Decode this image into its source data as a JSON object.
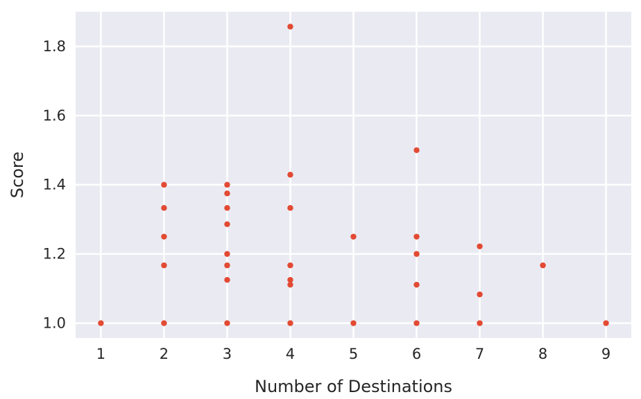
{
  "chart_data": {
    "type": "scatter",
    "title": "",
    "xlabel": "Number of Destinations",
    "ylabel": "Score",
    "xlim": [
      0.6,
      9.4
    ],
    "ylim": [
      0.957,
      1.9
    ],
    "xticks": [
      1,
      2,
      3,
      4,
      5,
      6,
      7,
      8,
      9
    ],
    "xtick_labels": [
      "1",
      "2",
      "3",
      "4",
      "5",
      "6",
      "7",
      "8",
      "9"
    ],
    "yticks": [
      1.0,
      1.2,
      1.4,
      1.6,
      1.8
    ],
    "ytick_labels": [
      "1.0",
      "1.2",
      "1.4",
      "1.6",
      "1.8"
    ],
    "grid": true,
    "background_color": "#eaeaf2",
    "grid_color": "#ffffff",
    "point_color": "#e24a33",
    "series": [
      {
        "points": [
          [
            1,
            1.0
          ],
          [
            2,
            1.0
          ],
          [
            2,
            1.167
          ],
          [
            2,
            1.25
          ],
          [
            2,
            1.333
          ],
          [
            2,
            1.4
          ],
          [
            3,
            1.0
          ],
          [
            3,
            1.125
          ],
          [
            3,
            1.167
          ],
          [
            3,
            1.2
          ],
          [
            3,
            1.286
          ],
          [
            3,
            1.333
          ],
          [
            3,
            1.375
          ],
          [
            3,
            1.4
          ],
          [
            4,
            1.0
          ],
          [
            4,
            1.111
          ],
          [
            4,
            1.125
          ],
          [
            4,
            1.167
          ],
          [
            4,
            1.333
          ],
          [
            4,
            1.429
          ],
          [
            4,
            1.857
          ],
          [
            5,
            1.0
          ],
          [
            5,
            1.25
          ],
          [
            6,
            1.0
          ],
          [
            6,
            1.111
          ],
          [
            6,
            1.2
          ],
          [
            6,
            1.25
          ],
          [
            6,
            1.5
          ],
          [
            7,
            1.0
          ],
          [
            7,
            1.083
          ],
          [
            7,
            1.222
          ],
          [
            8,
            1.167
          ],
          [
            9,
            1.0
          ]
        ]
      }
    ]
  }
}
